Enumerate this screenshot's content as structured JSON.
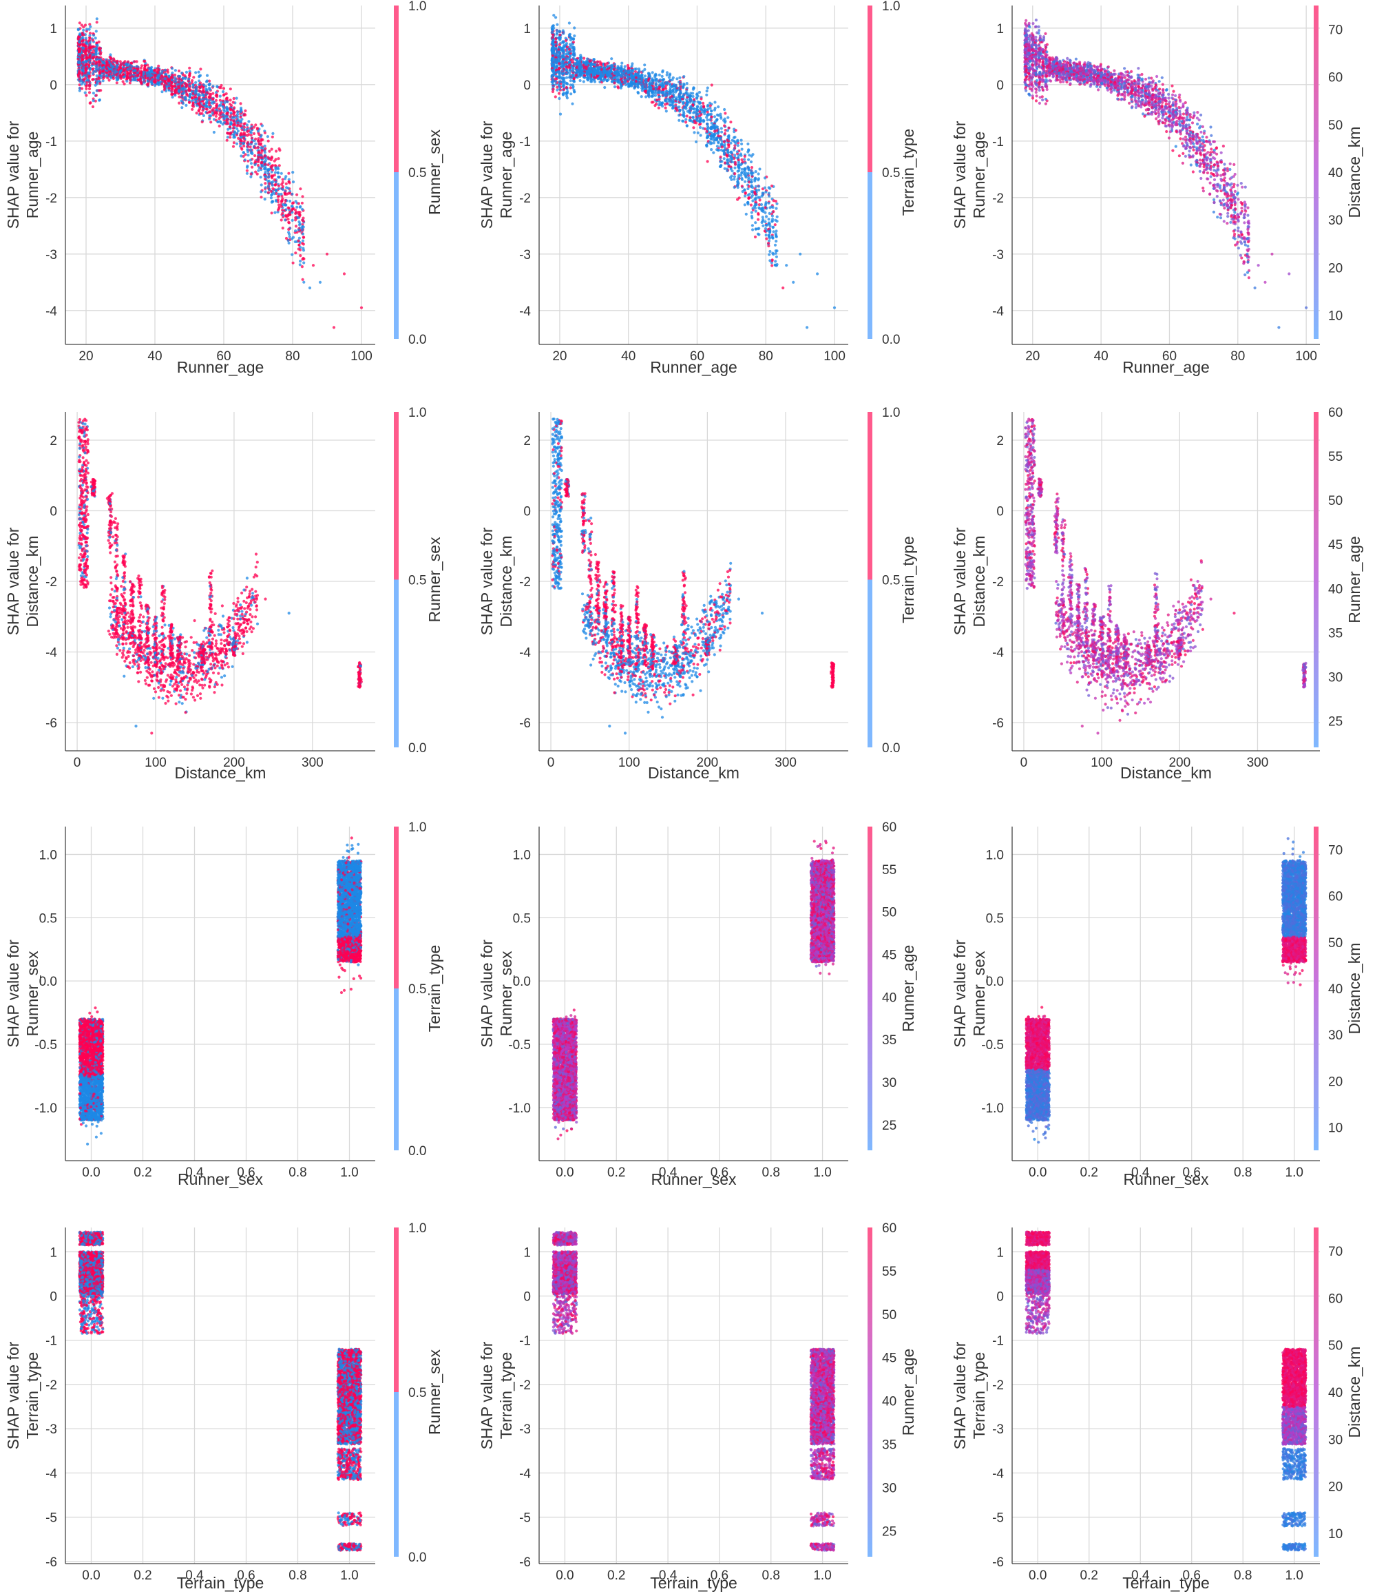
{
  "palette": {
    "low_color": "#1e88e5",
    "high_color": "#ff0052",
    "colorbar_low": "#7fb8ff",
    "colorbar_high": "#ff5a8c",
    "background": "#ffffff",
    "grid_color": "#d9d9d9"
  },
  "chart_data": [
    {
      "id": "runner_age_vs_runner_sex",
      "type": "scatter",
      "title": "",
      "xlabel": "Runner_age",
      "ylabel": "SHAP value for\nRunner_age",
      "xlim": [
        14,
        104
      ],
      "ylim": [
        -4.6,
        1.4
      ],
      "xticks": [
        20,
        40,
        60,
        80,
        100
      ],
      "xtick_labels": [
        "20",
        "40",
        "60",
        "80",
        "100"
      ],
      "yticks": [
        1,
        0,
        -1,
        -2,
        -3,
        -4
      ],
      "ytick_labels": [
        "1",
        "0",
        "-1",
        "-2",
        "-3",
        "-4"
      ],
      "grid": true,
      "colorbar": {
        "label": "Runner_sex",
        "range": [
          0,
          1
        ],
        "ticks": [
          "1.0",
          "0.5",
          "0.0"
        ],
        "binary": true
      },
      "shape": "age_curve",
      "color_mode": "binary_mix"
    },
    {
      "id": "runner_age_vs_terrain_type",
      "type": "scatter",
      "title": "",
      "xlabel": "Runner_age",
      "ylabel": "SHAP value for\nRunner_age",
      "xlim": [
        14,
        104
      ],
      "ylim": [
        -4.6,
        1.4
      ],
      "xticks": [
        20,
        40,
        60,
        80,
        100
      ],
      "xtick_labels": [
        "20",
        "40",
        "60",
        "80",
        "100"
      ],
      "yticks": [
        1,
        0,
        -1,
        -2,
        -3,
        -4
      ],
      "ytick_labels": [
        "1",
        "0",
        "-1",
        "-2",
        "-3",
        "-4"
      ],
      "grid": true,
      "colorbar": {
        "label": "Terrain_type",
        "range": [
          0,
          1
        ],
        "ticks": [
          "1.0",
          "0.5",
          "0.0"
        ],
        "binary": true
      },
      "shape": "age_curve",
      "color_mode": "binary_mostly_low"
    },
    {
      "id": "runner_age_vs_distance_km",
      "type": "scatter",
      "title": "",
      "xlabel": "Runner_age",
      "ylabel": "SHAP value for\nRunner_age",
      "xlim": [
        14,
        104
      ],
      "ylim": [
        -4.6,
        1.4
      ],
      "xticks": [
        20,
        40,
        60,
        80,
        100
      ],
      "xtick_labels": [
        "20",
        "40",
        "60",
        "80",
        "100"
      ],
      "yticks": [
        1,
        0,
        -1,
        -2,
        -3,
        -4
      ],
      "ytick_labels": [
        "1",
        "0",
        "-1",
        "-2",
        "-3",
        "-4"
      ],
      "grid": true,
      "colorbar": {
        "label": "Distance_km",
        "range": [
          5,
          75
        ],
        "ticks": [
          "70",
          "60",
          "50",
          "40",
          "30",
          "20",
          "10"
        ],
        "tick_values": [
          70,
          60,
          50,
          40,
          30,
          20,
          10
        ],
        "binary": false
      },
      "shape": "age_curve",
      "color_mode": "continuous_mix"
    },
    {
      "id": "distance_km_vs_runner_sex",
      "type": "scatter",
      "title": "",
      "xlabel": "Distance_km",
      "ylabel": "SHAP value for\nDistance_km",
      "xlim": [
        -15,
        380
      ],
      "ylim": [
        -6.8,
        2.8
      ],
      "xticks": [
        0,
        100,
        200,
        300
      ],
      "xtick_labels": [
        "0",
        "100",
        "200",
        "300"
      ],
      "yticks": [
        2,
        0,
        -2,
        -4,
        -6
      ],
      "ytick_labels": [
        "2",
        "0",
        "-2",
        "-4",
        "-6"
      ],
      "grid": true,
      "colorbar": {
        "label": "Runner_sex",
        "range": [
          0,
          1
        ],
        "ticks": [
          "1.0",
          "0.5",
          "0.0"
        ],
        "binary": true
      },
      "shape": "distance_curve",
      "color_mode": "binary_mostly_high"
    },
    {
      "id": "distance_km_vs_terrain_type",
      "type": "scatter",
      "title": "",
      "xlabel": "Distance_km",
      "ylabel": "SHAP value for\nDistance_km",
      "xlim": [
        -15,
        380
      ],
      "ylim": [
        -6.8,
        2.8
      ],
      "xticks": [
        0,
        100,
        200,
        300
      ],
      "xtick_labels": [
        "0",
        "100",
        "200",
        "300"
      ],
      "yticks": [
        2,
        0,
        -2,
        -4,
        -6
      ],
      "ytick_labels": [
        "2",
        "0",
        "-2",
        "-4",
        "-6"
      ],
      "grid": true,
      "colorbar": {
        "label": "Terrain_type",
        "range": [
          0,
          1
        ],
        "ticks": [
          "1.0",
          "0.5",
          "0.0"
        ],
        "binary": true
      },
      "shape": "distance_curve",
      "color_mode": "distance_terrain"
    },
    {
      "id": "distance_km_vs_runner_age",
      "type": "scatter",
      "title": "",
      "xlabel": "Distance_km",
      "ylabel": "SHAP value for\nDistance_km",
      "xlim": [
        -15,
        380
      ],
      "ylim": [
        -6.8,
        2.8
      ],
      "xticks": [
        0,
        100,
        200,
        300
      ],
      "xtick_labels": [
        "0",
        "100",
        "200",
        "300"
      ],
      "yticks": [
        2,
        0,
        -2,
        -4,
        -6
      ],
      "ytick_labels": [
        "2",
        "0",
        "-2",
        "-4",
        "-6"
      ],
      "grid": true,
      "colorbar": {
        "label": "Runner_age",
        "range": [
          22,
          60
        ],
        "ticks": [
          "60",
          "55",
          "50",
          "45",
          "40",
          "35",
          "30",
          "25"
        ],
        "tick_values": [
          60,
          55,
          50,
          45,
          40,
          35,
          30,
          25
        ],
        "binary": false
      },
      "shape": "distance_curve",
      "color_mode": "continuous_purple"
    },
    {
      "id": "runner_sex_vs_terrain_type",
      "type": "scatter",
      "title": "",
      "xlabel": "Runner_sex",
      "ylabel": "SHAP value for\nRunner_sex",
      "xlim": [
        -0.1,
        1.1
      ],
      "ylim": [
        -1.42,
        1.22
      ],
      "xticks": [
        0,
        0.2,
        0.4,
        0.6,
        0.8,
        1.0
      ],
      "xtick_labels": [
        "0.0",
        "0.2",
        "0.4",
        "0.6",
        "0.8",
        "1.0"
      ],
      "yticks": [
        1,
        0.5,
        0,
        -0.5,
        -1
      ],
      "ytick_labels": [
        "1.0",
        "0.5",
        "0.0",
        "-0.5",
        "-1.0"
      ],
      "grid": true,
      "colorbar": {
        "label": "Terrain_type",
        "range": [
          0,
          1
        ],
        "ticks": [
          "1.0",
          "0.5",
          "0.0"
        ],
        "binary": true
      },
      "shape": "sex_clusters",
      "color_mode": "sex_terrain"
    },
    {
      "id": "runner_sex_vs_runner_age",
      "type": "scatter",
      "title": "",
      "xlabel": "Runner_sex",
      "ylabel": "SHAP value for\nRunner_sex",
      "xlim": [
        -0.1,
        1.1
      ],
      "ylim": [
        -1.42,
        1.22
      ],
      "xticks": [
        0,
        0.2,
        0.4,
        0.6,
        0.8,
        1.0
      ],
      "xtick_labels": [
        "0.0",
        "0.2",
        "0.4",
        "0.6",
        "0.8",
        "1.0"
      ],
      "yticks": [
        1,
        0.5,
        0,
        -0.5,
        -1
      ],
      "ytick_labels": [
        "1.0",
        "0.5",
        "0.0",
        "-0.5",
        "-1.0"
      ],
      "grid": true,
      "colorbar": {
        "label": "Runner_age",
        "range": [
          22,
          60
        ],
        "ticks": [
          "60",
          "55",
          "50",
          "45",
          "40",
          "35",
          "30",
          "25"
        ],
        "tick_values": [
          60,
          55,
          50,
          45,
          40,
          35,
          30,
          25
        ],
        "binary": false
      },
      "shape": "sex_clusters",
      "color_mode": "continuous_purple"
    },
    {
      "id": "runner_sex_vs_distance_km",
      "type": "scatter",
      "title": "",
      "xlabel": "Runner_sex",
      "ylabel": "SHAP value for\nRunner_sex",
      "xlim": [
        -0.1,
        1.1
      ],
      "ylim": [
        -1.42,
        1.22
      ],
      "xticks": [
        0,
        0.2,
        0.4,
        0.6,
        0.8,
        1.0
      ],
      "xtick_labels": [
        "0.0",
        "0.2",
        "0.4",
        "0.6",
        "0.8",
        "1.0"
      ],
      "yticks": [
        1,
        0.5,
        0,
        -0.5,
        -1
      ],
      "ytick_labels": [
        "1.0",
        "0.5",
        "0.0",
        "-0.5",
        "-1.0"
      ],
      "grid": true,
      "colorbar": {
        "label": "Distance_km",
        "range": [
          5,
          75
        ],
        "ticks": [
          "70",
          "60",
          "50",
          "40",
          "30",
          "20",
          "10"
        ],
        "tick_values": [
          70,
          60,
          50,
          40,
          30,
          20,
          10
        ],
        "binary": false
      },
      "shape": "sex_clusters",
      "color_mode": "sex_distance"
    },
    {
      "id": "terrain_type_vs_runner_sex",
      "type": "scatter",
      "title": "",
      "xlabel": "Terrain_type",
      "ylabel": "SHAP value for\nTerrain_type",
      "xlim": [
        -0.1,
        1.1
      ],
      "ylim": [
        -6.05,
        1.55
      ],
      "xticks": [
        0,
        0.2,
        0.4,
        0.6,
        0.8,
        1.0
      ],
      "xtick_labels": [
        "0.0",
        "0.2",
        "0.4",
        "0.6",
        "0.8",
        "1.0"
      ],
      "yticks": [
        1,
        0,
        -1,
        -2,
        -3,
        -4,
        -5,
        -6
      ],
      "ytick_labels": [
        "1",
        "0",
        "-1",
        "-2",
        "-3",
        "-4",
        "-5",
        "-6"
      ],
      "grid": true,
      "colorbar": {
        "label": "Runner_sex",
        "range": [
          0,
          1
        ],
        "ticks": [
          "1.0",
          "0.5",
          "0.0"
        ],
        "binary": true
      },
      "shape": "terrain_clusters",
      "color_mode": "binary_mix"
    },
    {
      "id": "terrain_type_vs_runner_age",
      "type": "scatter",
      "title": "",
      "xlabel": "Terrain_type",
      "ylabel": "SHAP value for\nTerrain_type",
      "xlim": [
        -0.1,
        1.1
      ],
      "ylim": [
        -6.05,
        1.55
      ],
      "xticks": [
        0,
        0.2,
        0.4,
        0.6,
        0.8,
        1.0
      ],
      "xtick_labels": [
        "0.0",
        "0.2",
        "0.4",
        "0.6",
        "0.8",
        "1.0"
      ],
      "yticks": [
        1,
        0,
        -1,
        -2,
        -3,
        -4,
        -5,
        -6
      ],
      "ytick_labels": [
        "1",
        "0",
        "-1",
        "-2",
        "-3",
        "-4",
        "-5",
        "-6"
      ],
      "grid": true,
      "colorbar": {
        "label": "Runner_age",
        "range": [
          22,
          60
        ],
        "ticks": [
          "60",
          "55",
          "50",
          "45",
          "40",
          "35",
          "30",
          "25"
        ],
        "tick_values": [
          60,
          55,
          50,
          45,
          40,
          35,
          30,
          25
        ],
        "binary": false
      },
      "shape": "terrain_clusters",
      "color_mode": "continuous_purple"
    },
    {
      "id": "terrain_type_vs_distance_km",
      "type": "scatter",
      "title": "",
      "xlabel": "Terrain_type",
      "ylabel": "SHAP value for\nTerrain_type",
      "xlim": [
        -0.1,
        1.1
      ],
      "ylim": [
        -6.05,
        1.55
      ],
      "xticks": [
        0,
        0.2,
        0.4,
        0.6,
        0.8,
        1.0
      ],
      "xtick_labels": [
        "0.0",
        "0.2",
        "0.4",
        "0.6",
        "0.8",
        "1.0"
      ],
      "yticks": [
        1,
        0,
        -1,
        -2,
        -3,
        -4,
        -5,
        -6
      ],
      "ytick_labels": [
        "1",
        "0",
        "-1",
        "-2",
        "-3",
        "-4",
        "-5",
        "-6"
      ],
      "grid": true,
      "colorbar": {
        "label": "Distance_km",
        "range": [
          5,
          75
        ],
        "ticks": [
          "70",
          "60",
          "50",
          "40",
          "30",
          "20",
          "10"
        ],
        "tick_values": [
          70,
          60,
          50,
          40,
          30,
          20,
          10
        ],
        "binary": false
      },
      "shape": "terrain_clusters",
      "color_mode": "terrain_distance"
    }
  ]
}
